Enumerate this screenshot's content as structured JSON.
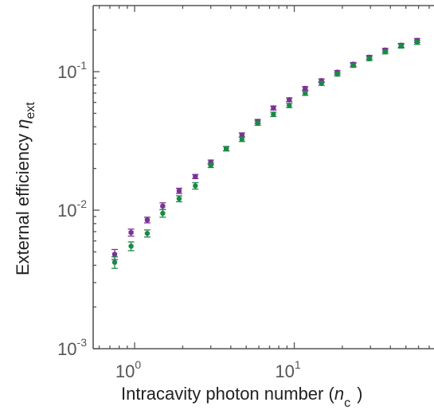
{
  "chart_data": {
    "type": "scatter",
    "xlabel": {
      "main": "Intracavity photon number (",
      "var": "n",
      "sub": "c",
      "close": ")"
    },
    "ylabel": {
      "main": "External efficiency ",
      "var": "η",
      "sub": "ext"
    },
    "xscale": "log",
    "yscale": "log",
    "xlim": [
      0.55,
      75
    ],
    "ylim": [
      0.001,
      0.3
    ],
    "grid": false,
    "x_ticks": [
      {
        "value": 1,
        "base": "10",
        "exp": "0"
      },
      {
        "value": 10,
        "base": "10",
        "exp": "1"
      }
    ],
    "y_ticks": [
      {
        "value": 0.1,
        "base": "10",
        "exp": "-1"
      },
      {
        "value": 0.01,
        "base": "10",
        "exp": "-2"
      },
      {
        "value": 0.001,
        "base": "10",
        "exp": "-3"
      }
    ],
    "series": [
      {
        "color": "#7b3294",
        "marker": "hexagon",
        "x": [
          0.75,
          0.95,
          1.2,
          1.5,
          1.9,
          2.4,
          3.0,
          3.75,
          4.7,
          5.9,
          7.4,
          9.3,
          11.7,
          14.8,
          18.6,
          23.4,
          29.5,
          37.1,
          46.7,
          58.8
        ],
        "y": [
          0.0048,
          0.0069,
          0.0085,
          0.0107,
          0.0138,
          0.0175,
          0.0222,
          0.0278,
          0.0349,
          0.0437,
          0.0547,
          0.0627,
          0.0757,
          0.0861,
          0.099,
          0.113,
          0.127,
          0.143,
          0.155,
          0.168
        ],
        "err": [
          0.0004,
          0.0004,
          0.0004,
          0.0006,
          0.0006,
          0.0006,
          0.0008,
          0.001,
          0.0012,
          0.0015,
          0.0018,
          0.002,
          0.0023,
          0.0026,
          0.003,
          0.0035,
          0.004,
          0.0045,
          0.005,
          0.0055
        ]
      },
      {
        "color": "#1a8a44",
        "marker": "circle",
        "x": [
          0.75,
          0.95,
          1.2,
          1.5,
          1.9,
          2.4,
          3.0,
          3.75,
          4.7,
          5.9,
          7.4,
          9.3,
          11.7,
          14.8,
          18.6,
          23.4,
          29.5,
          37.1,
          46.7,
          58.8
        ],
        "y": [
          0.0042,
          0.0055,
          0.0068,
          0.0095,
          0.0121,
          0.015,
          0.0211,
          0.0278,
          0.0325,
          0.0425,
          0.0492,
          0.057,
          0.0697,
          0.0822,
          0.096,
          0.111,
          0.124,
          0.139,
          0.153,
          0.163
        ],
        "err": [
          0.0004,
          0.0004,
          0.0004,
          0.0006,
          0.0006,
          0.0008,
          0.0008,
          0.001,
          0.0012,
          0.0015,
          0.0018,
          0.002,
          0.0023,
          0.0026,
          0.003,
          0.0035,
          0.004,
          0.0045,
          0.005,
          0.0055
        ]
      }
    ]
  }
}
